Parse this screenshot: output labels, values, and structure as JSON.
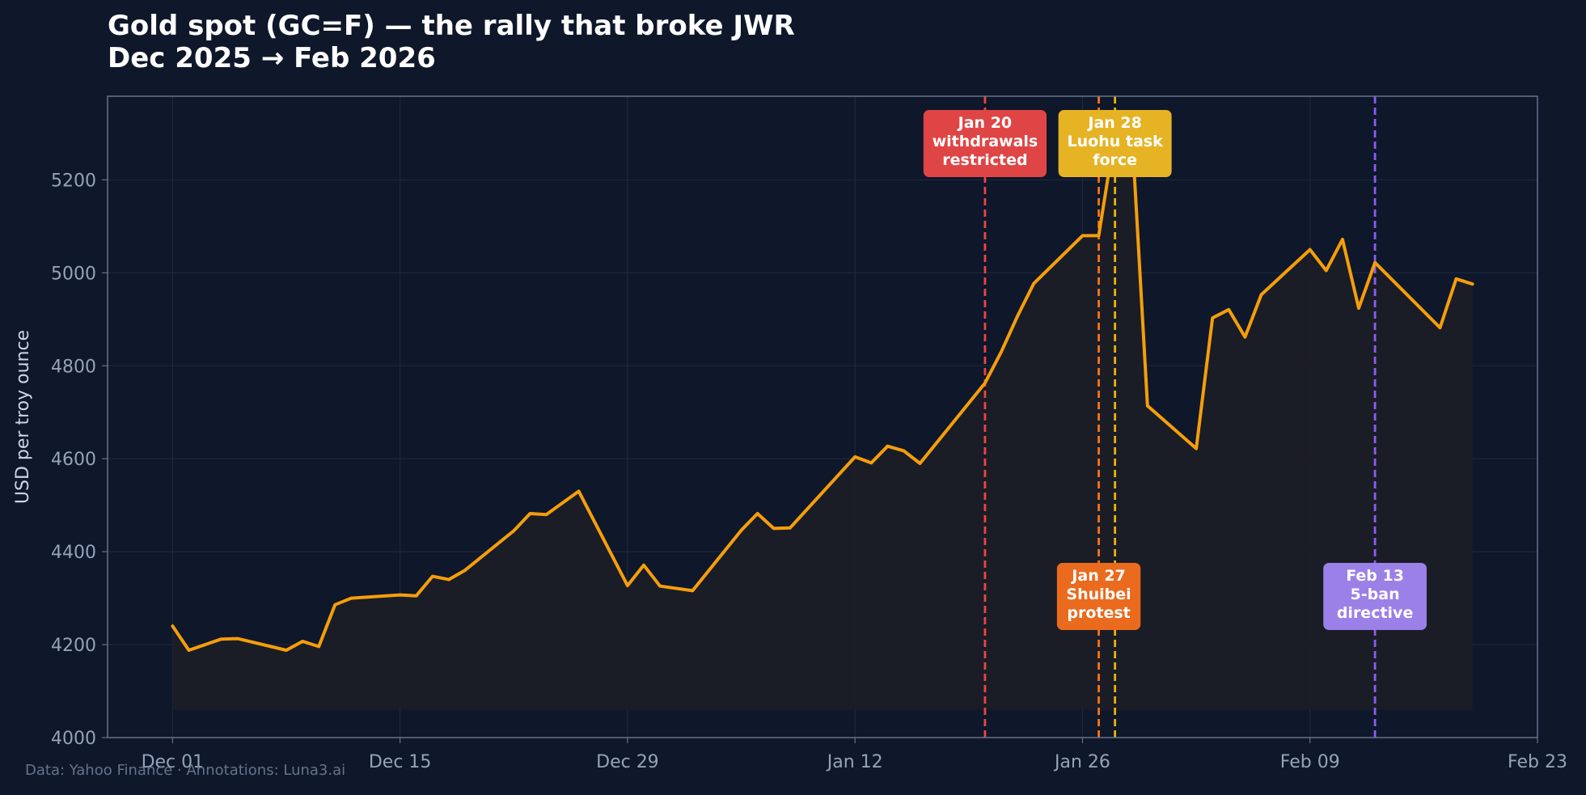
{
  "chart_data": {
    "type": "line",
    "title_lines": [
      "Gold spot (GC=F) — the rally that broke JWR",
      "Dec 2025 → Feb 2026"
    ],
    "xlabel": "",
    "ylabel": "USD per troy ounce",
    "ylim": [
      4000,
      5380
    ],
    "xlim": [
      "2025-11-27",
      "2026-02-23"
    ],
    "grid": true,
    "legend": "none",
    "x_ticks": [
      {
        "date": "2025-12-01",
        "label": "Dec 01"
      },
      {
        "date": "2025-12-15",
        "label": "Dec 15"
      },
      {
        "date": "2025-12-29",
        "label": "Dec 29"
      },
      {
        "date": "2026-01-12",
        "label": "Jan 12"
      },
      {
        "date": "2026-01-26",
        "label": "Jan 26"
      },
      {
        "date": "2026-02-09",
        "label": "Feb 09"
      },
      {
        "date": "2026-02-23",
        "label": "Feb 23"
      }
    ],
    "y_ticks": [
      4000,
      4200,
      4400,
      4600,
      4800,
      5000,
      5200
    ],
    "series": [
      {
        "color": "#f59e0b",
        "points": [
          [
            "2025-12-01",
            4240
          ],
          [
            "2025-12-02",
            4188
          ],
          [
            "2025-12-04",
            4212
          ],
          [
            "2025-12-05",
            4213
          ],
          [
            "2025-12-08",
            4188
          ],
          [
            "2025-12-09",
            4207
          ],
          [
            "2025-12-10",
            4196
          ],
          [
            "2025-12-11",
            4286
          ],
          [
            "2025-12-12",
            4300
          ],
          [
            "2025-12-15",
            4307
          ],
          [
            "2025-12-16",
            4305
          ],
          [
            "2025-12-17",
            4347
          ],
          [
            "2025-12-18",
            4340
          ],
          [
            "2025-12-19",
            4360
          ],
          [
            "2025-12-22",
            4445
          ],
          [
            "2025-12-23",
            4482
          ],
          [
            "2025-12-24",
            4480
          ],
          [
            "2025-12-26",
            4530
          ],
          [
            "2025-12-29",
            4327
          ],
          [
            "2025-12-30",
            4371
          ],
          [
            "2025-12-31",
            4326
          ],
          [
            "2026-01-02",
            4316
          ],
          [
            "2026-01-05",
            4446
          ],
          [
            "2026-01-06",
            4482
          ],
          [
            "2026-01-07",
            4450
          ],
          [
            "2026-01-08",
            4451
          ],
          [
            "2026-01-12",
            4604
          ],
          [
            "2026-01-13",
            4591
          ],
          [
            "2026-01-14",
            4627
          ],
          [
            "2026-01-15",
            4617
          ],
          [
            "2026-01-16",
            4590
          ],
          [
            "2026-01-20",
            4763
          ],
          [
            "2026-01-21",
            4830
          ],
          [
            "2026-01-22",
            4907
          ],
          [
            "2026-01-23",
            4977
          ],
          [
            "2026-01-26",
            5080
          ],
          [
            "2026-01-27",
            5080
          ],
          [
            "2026-01-28",
            5300
          ],
          [
            "2026-01-29",
            5330
          ],
          [
            "2026-01-30",
            4714
          ],
          [
            "2026-02-02",
            4622
          ],
          [
            "2026-02-03",
            4903
          ],
          [
            "2026-02-04",
            4921
          ],
          [
            "2026-02-05",
            4862
          ],
          [
            "2026-02-06",
            4953
          ],
          [
            "2026-02-09",
            5050
          ],
          [
            "2026-02-10",
            5005
          ],
          [
            "2026-02-11",
            5072
          ],
          [
            "2026-02-12",
            4924
          ],
          [
            "2026-02-13",
            5022
          ],
          [
            "2026-02-17",
            4882
          ],
          [
            "2026-02-18",
            4987
          ],
          [
            "2026-02-19",
            4976
          ]
        ]
      }
    ],
    "annotations": [
      {
        "date": "2026-01-20",
        "color": "#ef4444",
        "box_color": "#e04545",
        "lines": [
          "Jan 20",
          "withdrawals",
          "restricted"
        ],
        "placement": "top"
      },
      {
        "date": "2026-01-27",
        "color": "#f97316",
        "box_color": "#ea6a1e",
        "lines": [
          "Jan 27",
          "Shuibei",
          "protest"
        ],
        "placement": "bottom"
      },
      {
        "date": "2026-01-28",
        "color": "#eab308",
        "box_color": "#e6b325",
        "lines": [
          "Jan 28",
          "Luohu task",
          "force"
        ],
        "placement": "top"
      },
      {
        "date": "2026-02-13",
        "color": "#8b5cf6",
        "box_color": "#9b80e8",
        "lines": [
          "Feb 13",
          "5-ban",
          "directive"
        ],
        "placement": "bottom"
      }
    ],
    "colors": {
      "background": "#0f172a",
      "plot_frame": "#64748b",
      "grid": "#1e293b",
      "fill": "#1c1e26"
    },
    "footer": "Data: Yahoo Finance · Annotations: Luna3.ai"
  }
}
